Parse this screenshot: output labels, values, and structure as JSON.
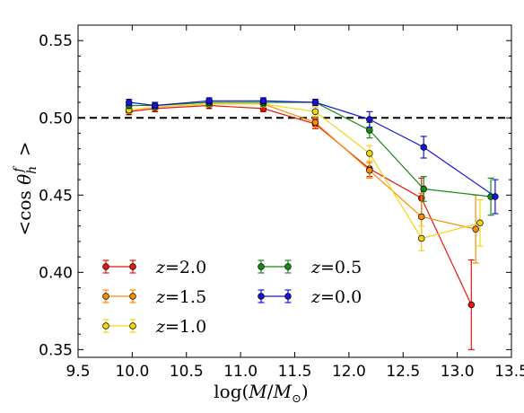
{
  "chart_data": {
    "type": "line",
    "xlabel": "log(M/M⊙)",
    "ylabel": "<cos θ_h^f >",
    "xlim": [
      9.5,
      13.5
    ],
    "ylim": [
      0.345,
      0.56
    ],
    "x_ticks": [
      "9.5",
      "10.0",
      "10.5",
      "11.0",
      "11.5",
      "12.0",
      "12.5",
      "13.0",
      "13.5"
    ],
    "y_ticks": [
      "0.35",
      "0.40",
      "0.45",
      "0.50",
      "0.55"
    ],
    "reference_line": {
      "y": 0.5,
      "style": "dashed",
      "color": "#000000"
    },
    "legend_placement": "lower-left",
    "series": [
      {
        "name": "z = 2.0",
        "name_parts": [
          "z",
          "=2.0"
        ],
        "color": "#e8160c",
        "x": [
          9.97,
          10.21,
          10.71,
          11.21,
          11.69,
          12.19,
          12.67,
          13.13
        ],
        "y": [
          0.504,
          0.506,
          0.508,
          0.506,
          0.496,
          0.467,
          0.448,
          0.379
        ],
        "err": [
          0.002,
          0.002,
          0.002,
          0.002,
          0.003,
          0.005,
          0.013,
          0.029
        ]
      },
      {
        "name": "z = 1.5",
        "name_parts": [
          "z",
          "=1.5"
        ],
        "color": "#fb8c00",
        "x": [
          9.97,
          10.21,
          10.71,
          11.21,
          11.69,
          12.19,
          12.67,
          13.17
        ],
        "y": [
          0.505,
          0.507,
          0.509,
          0.509,
          0.497,
          0.466,
          0.436,
          0.428
        ],
        "err": [
          0.002,
          0.002,
          0.002,
          0.002,
          0.003,
          0.005,
          0.015,
          0.022
        ]
      },
      {
        "name": "z = 1.0",
        "name_parts": [
          "z",
          "=1.0"
        ],
        "color": "#f5d414",
        "x": [
          9.97,
          10.21,
          10.71,
          11.21,
          11.69,
          12.19,
          12.67,
          13.21
        ],
        "y": [
          0.505,
          0.507,
          0.509,
          0.509,
          0.504,
          0.477,
          0.422,
          0.432
        ],
        "err": [
          0.002,
          0.002,
          0.002,
          0.002,
          0.003,
          0.005,
          0.008,
          0.015
        ]
      },
      {
        "name": "z = 0.5",
        "name_parts": [
          "z",
          "=0.5"
        ],
        "color": "#168c16",
        "x": [
          9.97,
          10.21,
          10.71,
          11.21,
          11.69,
          12.19,
          12.69,
          13.31
        ],
        "y": [
          0.508,
          0.508,
          0.51,
          0.51,
          0.51,
          0.492,
          0.454,
          0.449
        ],
        "err": [
          0.002,
          0.002,
          0.002,
          0.002,
          0.002,
          0.005,
          0.008,
          0.012
        ]
      },
      {
        "name": "z = 0.0",
        "name_parts": [
          "z",
          "=0.0"
        ],
        "color": "#1414dc",
        "x": [
          9.97,
          10.21,
          10.71,
          11.21,
          11.69,
          12.19,
          12.69,
          13.35
        ],
        "y": [
          0.51,
          0.508,
          0.511,
          0.511,
          0.51,
          0.499,
          0.481,
          0.449
        ],
        "err": [
          0.002,
          0.002,
          0.002,
          0.002,
          0.002,
          0.005,
          0.007,
          0.011
        ]
      }
    ]
  }
}
